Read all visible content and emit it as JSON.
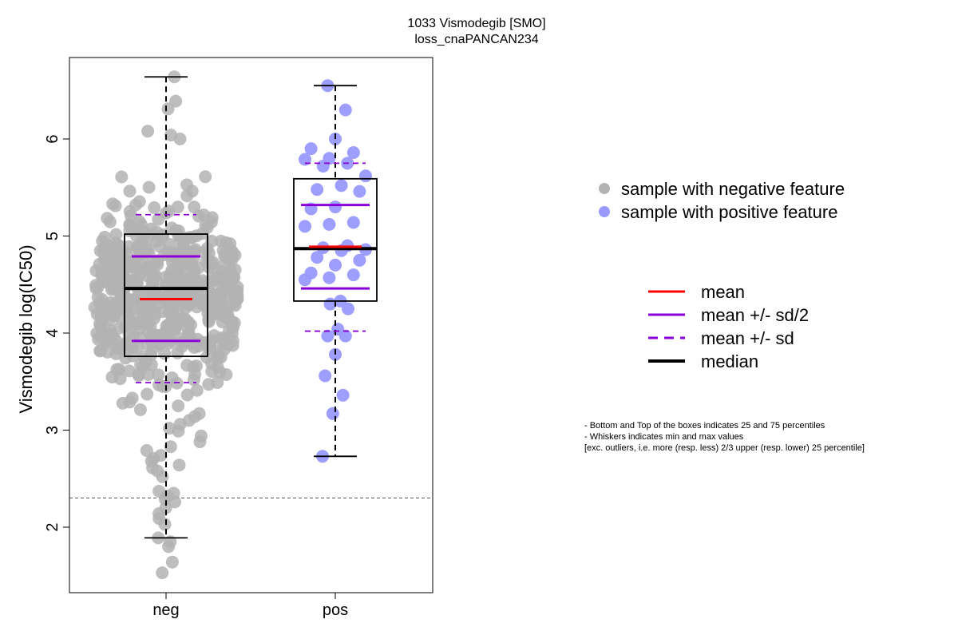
{
  "chart_data": {
    "type": "scatter",
    "title_line1": "1033 Vismodegib [SMO]",
    "title_line2": "loss_cnaPANCAN234",
    "xlabel": "",
    "ylabel": "Vismodegib log(IC50)",
    "categories": [
      "neg",
      "pos"
    ],
    "y_ticks": [
      "2",
      "3",
      "4",
      "5",
      "6"
    ],
    "ylim": [
      1.4,
      6.9
    ],
    "reference_line": 2.3,
    "colors": {
      "neg_points": "#b3b3b3",
      "pos_points": "#9999ff",
      "mean": "#ff0000",
      "sd": "#8b00d9",
      "median": "#000000"
    },
    "groups": [
      {
        "name": "neg",
        "whisker_low": 1.89,
        "q1": 3.76,
        "median": 4.46,
        "q3": 5.02,
        "whisker_high": 6.64,
        "mean": 4.35,
        "mean_minus_half_sd": 3.92,
        "mean_plus_half_sd": 4.79,
        "mean_minus_sd": 3.49,
        "mean_plus_sd": 5.22,
        "points_note": "approx. 700 samples, dense swarm",
        "points": [
          1.53,
          1.64,
          1.8,
          1.85,
          1.89,
          2.03,
          2.09,
          2.14,
          2.2,
          2.26,
          2.29,
          2.32,
          2.35,
          2.37,
          2.52,
          2.58,
          2.61,
          2.64,
          2.68,
          2.71,
          2.74,
          2.79,
          2.83,
          2.88,
          2.94,
          2.99,
          3.02,
          3.06,
          3.1,
          3.14,
          3.17,
          3.21,
          3.25,
          3.29,
          3.33,
          3.37,
          3.41,
          3.45,
          3.49,
          3.53,
          3.57,
          3.61,
          3.65,
          6.0,
          6.04,
          6.08,
          6.31,
          6.39,
          6.64
        ]
      },
      {
        "name": "pos",
        "whisker_low": 2.73,
        "q1": 4.33,
        "median": 4.87,
        "q3": 5.59,
        "whisker_high": 6.55,
        "mean": 4.89,
        "mean_minus_half_sd": 4.46,
        "mean_plus_half_sd": 5.32,
        "mean_minus_sd": 4.02,
        "mean_plus_sd": 5.75,
        "points": [
          2.73,
          3.17,
          3.36,
          3.56,
          3.78,
          3.97,
          3.97,
          4.04,
          4.25,
          4.3,
          4.33,
          4.55,
          4.57,
          4.6,
          4.62,
          4.7,
          4.75,
          4.78,
          4.85,
          4.86,
          4.88,
          4.9,
          5.1,
          5.12,
          5.14,
          5.28,
          5.3,
          5.46,
          5.48,
          5.52,
          5.62,
          5.72,
          5.75,
          5.79,
          5.8,
          5.86,
          5.9,
          6.0,
          6.3,
          6.55
        ]
      }
    ],
    "legend_points": [
      {
        "label": "sample with negative feature",
        "color": "#b3b3b3"
      },
      {
        "label": "sample with positive feature",
        "color": "#9999ff"
      }
    ],
    "legend_lines": [
      {
        "label": "mean",
        "color": "#ff0000",
        "style": "solid",
        "weight": "normal"
      },
      {
        "label": "mean +/- sd/2",
        "color": "#8b00d9",
        "style": "solid",
        "weight": "normal"
      },
      {
        "label": "mean +/- sd",
        "color": "#8b00d9",
        "style": "dashed",
        "weight": "normal"
      },
      {
        "label": "median",
        "color": "#000000",
        "style": "solid",
        "weight": "bold"
      }
    ],
    "notes": [
      "- Bottom and Top of the boxes indicates 25 and 75 percentiles",
      "- Whiskers indicates min and max values",
      "[exc. outliers, i.e. more (resp. less) 2/3 upper (resp. lower) 25 percentile]"
    ]
  }
}
